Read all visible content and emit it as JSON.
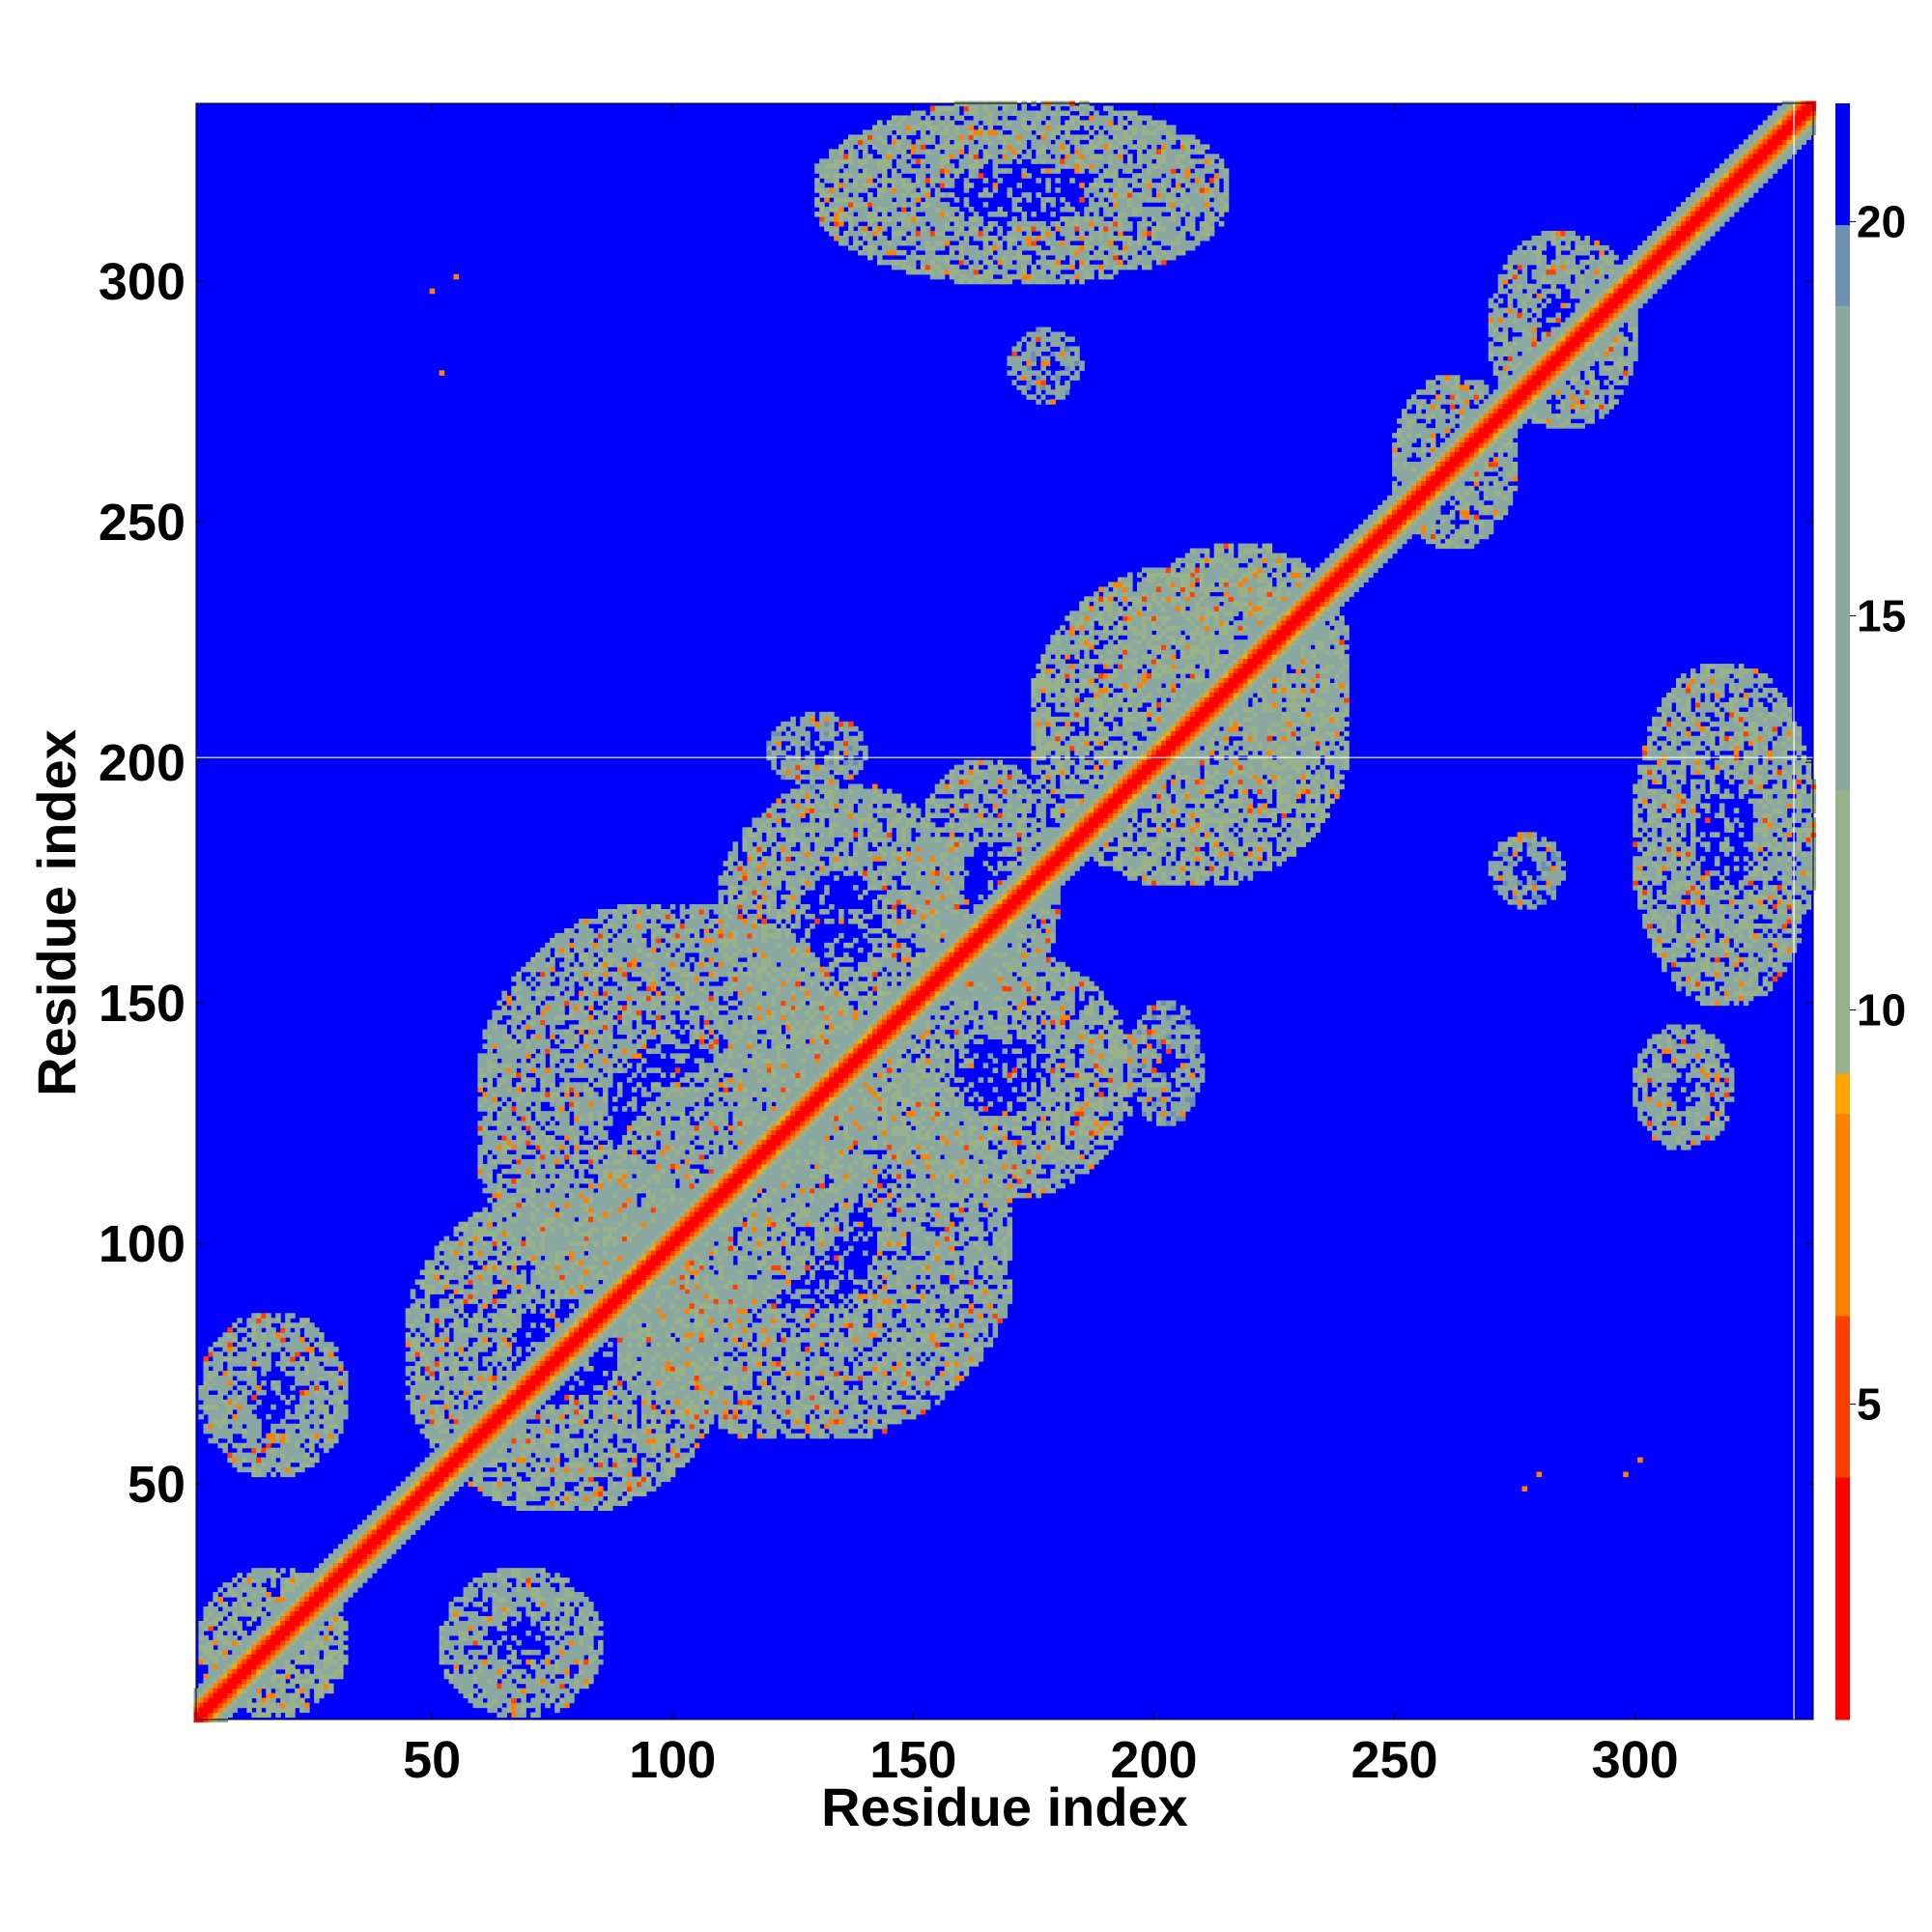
{
  "chart_data": {
    "type": "heatmap",
    "title": "",
    "xlabel": "Residue index",
    "ylabel": "Residue index",
    "xlim": [
      1,
      337
    ],
    "ylim": [
      1,
      337
    ],
    "xticks": [
      50,
      100,
      150,
      200,
      250,
      300
    ],
    "yticks": [
      50,
      100,
      150,
      200,
      250,
      300
    ],
    "xtick_labels": [
      "50",
      "100",
      "150",
      "200",
      "250",
      "300"
    ],
    "ytick_labels": [
      "50",
      "100",
      "150",
      "200",
      "250",
      "300"
    ],
    "colorbar": {
      "range": [
        1,
        21.5
      ],
      "ticks": [
        5,
        10,
        15,
        20
      ],
      "tick_labels": [
        "5",
        "10",
        "15",
        "20"
      ],
      "colors": [
        "#ff0000",
        "#ff4000",
        "#ff8000",
        "#ffa500",
        "#9ab28a",
        "#8aa8a0",
        "#6f8fb0",
        "#0000ff"
      ],
      "color_stops": [
        1,
        4,
        6,
        8.5,
        9,
        13,
        19,
        20
      ]
    },
    "background_value": 21.5,
    "diagonal_band": [
      {
        "offset": 0,
        "value": 2
      },
      {
        "offset": 1,
        "value": 3
      },
      {
        "offset": 2,
        "value": 5
      },
      {
        "offset": 3,
        "value": 8
      },
      {
        "offset": 4,
        "value": 11
      },
      {
        "offset": 5,
        "value": 14
      },
      {
        "offset": 6,
        "value": 17
      }
    ],
    "contact_regions": [
      {
        "x": [
          2,
          32
        ],
        "y": [
          52,
          85
        ],
        "value": 15
      },
      {
        "x": [
          52,
          85
        ],
        "y": [
          2,
          32
        ],
        "value": 15
      },
      {
        "x": [
          2,
          32
        ],
        "y": [
          2,
          32
        ],
        "value": 13
      },
      {
        "x": [
          45,
          110
        ],
        "y": [
          45,
          110
        ],
        "value": 14
      },
      {
        "x": [
          60,
          140
        ],
        "y": [
          85,
          170
        ],
        "value": 15
      },
      {
        "x": [
          85,
          170
        ],
        "y": [
          60,
          140
        ],
        "value": 15
      },
      {
        "x": [
          110,
          160
        ],
        "y": [
          140,
          195
        ],
        "value": 14
      },
      {
        "x": [
          140,
          195
        ],
        "y": [
          110,
          160
        ],
        "value": 14
      },
      {
        "x": [
          150,
          180
        ],
        "y": [
          150,
          200
        ],
        "value": 15
      },
      {
        "x": [
          175,
          240
        ],
        "y": [
          175,
          240
        ],
        "value": 13
      },
      {
        "x": [
          195,
          240
        ],
        "y": [
          195,
          245
        ],
        "value": 14
      },
      {
        "x": [
          250,
          275
        ],
        "y": [
          245,
          280
        ],
        "value": 15
      },
      {
        "x": [
          270,
          300
        ],
        "y": [
          270,
          310
        ],
        "value": 15
      },
      {
        "x": [
          130,
          215
        ],
        "y": [
          300,
          337
        ],
        "value": 14
      },
      {
        "x": [
          120,
          140
        ],
        "y": [
          195,
          210
        ],
        "value": 16
      },
      {
        "x": [
          300,
          337
        ],
        "y": [
          150,
          220
        ],
        "value": 14
      },
      {
        "x": [
          300,
          320
        ],
        "y": [
          120,
          145
        ],
        "value": 15
      },
      {
        "x": [
          270,
          285
        ],
        "y": [
          170,
          185
        ],
        "value": 16
      },
      {
        "x": [
          195,
          210
        ],
        "y": [
          125,
          150
        ],
        "value": 16
      },
      {
        "x": [
          170,
          185
        ],
        "y": [
          275,
          290
        ],
        "value": 17
      }
    ],
    "isolated_contacts": [
      {
        "x": 50,
        "y": 298,
        "value": 6
      },
      {
        "x": 55,
        "y": 301,
        "value": 6
      },
      {
        "x": 52,
        "y": 281,
        "value": 6
      },
      {
        "x": 277,
        "y": 49,
        "value": 6
      },
      {
        "x": 280,
        "y": 52,
        "value": 6
      },
      {
        "x": 298,
        "y": 52,
        "value": 6
      },
      {
        "x": 301,
        "y": 55,
        "value": 6
      }
    ],
    "grid": false
  }
}
